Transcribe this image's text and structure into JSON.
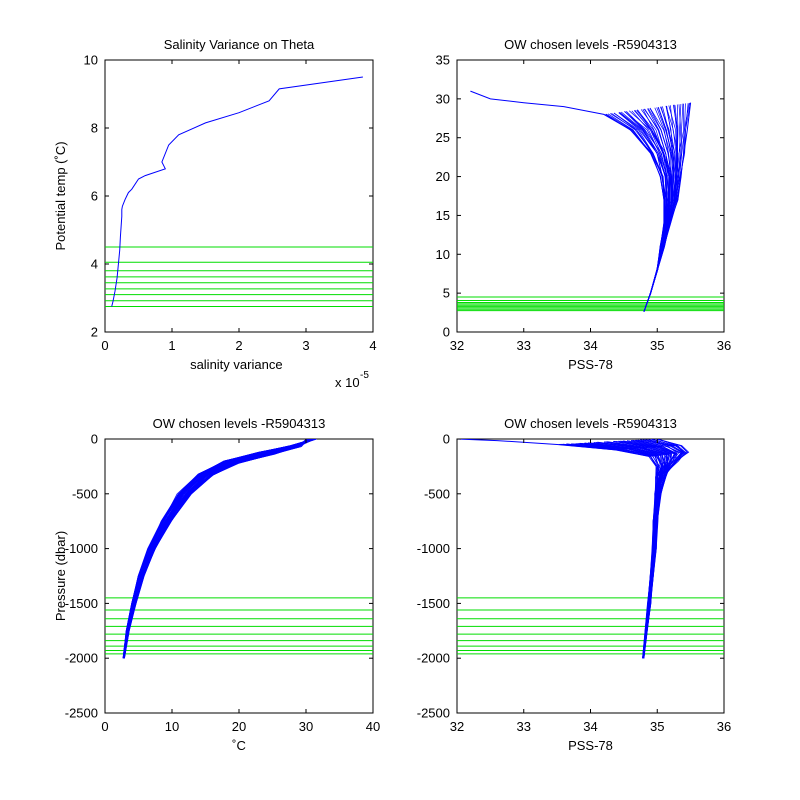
{
  "colors": {
    "profile": "#0000ff",
    "levels": "#00dd00",
    "axes": "#000000"
  },
  "chart_data": [
    {
      "id": "p1",
      "type": "line",
      "title": "Salinity Variance on Theta",
      "xlabel": "salinity variance",
      "ylabel": "Potential temp (˚C)",
      "x_exponent_label": "x 10",
      "x_exponent_power": "-5",
      "xlim": [
        0,
        4e-05
      ],
      "ylim": [
        2,
        10
      ],
      "xticks": [
        0,
        1e-05,
        2e-05,
        3e-05,
        4e-05
      ],
      "xtick_labels": [
        "0",
        "1",
        "2",
        "3",
        "4"
      ],
      "yticks": [
        2,
        4,
        6,
        8,
        10
      ],
      "ytick_labels": [
        "2",
        "4",
        "6",
        "8",
        "10"
      ],
      "grid": false,
      "series": [
        {
          "x": [
            1e-06,
            1.2e-06,
            1.5e-06,
            1.8e-06,
            2e-06,
            2.2e-06,
            2.3e-06,
            2.4e-06,
            2.5e-06,
            2.5e-06,
            2.6e-06,
            3e-06,
            3.5e-06,
            4e-06,
            5e-06,
            6e-06,
            9e-06,
            8.5e-06,
            9.5e-06,
            1.1e-05,
            1.5e-05,
            2e-05,
            2.45e-05,
            2.6e-05,
            3.85e-05
          ],
          "y": [
            2.75,
            2.9,
            3.2,
            3.6,
            4.0,
            4.4,
            4.8,
            5.1,
            5.4,
            5.6,
            5.7,
            5.9,
            6.1,
            6.2,
            6.5,
            6.6,
            6.8,
            7.0,
            7.5,
            7.8,
            8.15,
            8.45,
            8.8,
            9.15,
            9.5
          ]
        }
      ],
      "levels": [
        2.75,
        2.92,
        3.1,
        3.27,
        3.45,
        3.62,
        3.8,
        4.05,
        4.5
      ]
    },
    {
      "id": "p2",
      "type": "line",
      "title": "OW chosen levels -R5904313",
      "xlabel": "PSS-78",
      "ylabel": "",
      "xlim": [
        32,
        36
      ],
      "ylim": [
        0,
        35
      ],
      "xticks": [
        32,
        33,
        34,
        35,
        36
      ],
      "xtick_labels": [
        "32",
        "33",
        "34",
        "35",
        "36"
      ],
      "yticks": [
        0,
        5,
        10,
        15,
        20,
        25,
        30,
        35
      ],
      "ytick_labels": [
        "0",
        "5",
        "10",
        "15",
        "20",
        "25",
        "30",
        "35"
      ],
      "grid": false,
      "series": [
        {
          "name": "",
          "x": [
            34.8,
            34.9,
            35.0,
            35.05,
            35.1,
            35.1,
            35.05,
            34.9,
            34.6,
            34.2,
            33.6,
            33.0,
            32.5,
            32.2
          ],
          "y": [
            2.6,
            5.0,
            8.0,
            11.0,
            14.0,
            17.0,
            20.0,
            23.0,
            26.0,
            28.0,
            29.0,
            29.5,
            30.0,
            31.0
          ]
        },
        {
          "name": "",
          "x": [
            34.8,
            34.9,
            35.0,
            35.1,
            35.2,
            35.3,
            35.35,
            35.4,
            35.45,
            35.5
          ],
          "y": [
            2.6,
            5.0,
            8.0,
            11.0,
            14.0,
            17.0,
            20.0,
            23.0,
            26.0,
            29.5
          ]
        }
      ],
      "levels": [
        2.75,
        2.92,
        3.1,
        3.27,
        3.45,
        3.62,
        3.8,
        4.05,
        4.5
      ]
    },
    {
      "id": "p3",
      "type": "line",
      "title": "OW chosen levels -R5904313",
      "xlabel": "˚C",
      "ylabel": "Pressure (dbar)",
      "xlim": [
        0,
        40
      ],
      "ylim": [
        -2500,
        0
      ],
      "xticks": [
        0,
        10,
        20,
        30,
        40
      ],
      "xtick_labels": [
        "0",
        "10",
        "20",
        "30",
        "40"
      ],
      "yticks": [
        -2500,
        -2000,
        -1500,
        -1000,
        -500,
        0
      ],
      "ytick_labels": [
        "-2500",
        "-2000",
        "-1500",
        "-1000",
        "-500",
        "0"
      ],
      "grid": false,
      "series": [
        {
          "name": "",
          "x": [
            2.7,
            3.2,
            4.0,
            5.0,
            6.5,
            8.5,
            11.0,
            14.0,
            18.0,
            23.0,
            28.0,
            31.5
          ],
          "y": [
            -2000,
            -1750,
            -1500,
            -1250,
            -1000,
            -750,
            -500,
            -320,
            -200,
            -120,
            -60,
            0
          ]
        },
        {
          "name": "",
          "x": [
            2.9,
            3.6,
            4.6,
            5.8,
            7.4,
            9.8,
            12.8,
            16.0,
            20.0,
            25.0,
            29.0,
            30.5
          ],
          "y": [
            -2000,
            -1750,
            -1500,
            -1250,
            -1000,
            -750,
            -500,
            -330,
            -220,
            -140,
            -70,
            0
          ]
        }
      ],
      "levels": [
        -1450,
        -1560,
        -1640,
        -1710,
        -1780,
        -1840,
        -1890,
        -1930,
        -1960
      ]
    },
    {
      "id": "p4",
      "type": "line",
      "title": "OW chosen levels -R5904313",
      "xlabel": "PSS-78",
      "ylabel": "",
      "xlim": [
        32,
        36
      ],
      "ylim": [
        -2500,
        0
      ],
      "xticks": [
        32,
        33,
        34,
        35,
        36
      ],
      "xtick_labels": [
        "32",
        "33",
        "34",
        "35",
        "36"
      ],
      "yticks": [
        -2500,
        -2000,
        -1500,
        -1000,
        -500,
        0
      ],
      "ytick_labels": [
        "-2500",
        "-2000",
        "-1500",
        "-1000",
        "-500",
        "0"
      ],
      "grid": false,
      "series": [
        {
          "name": "",
          "x": [
            34.78,
            34.82,
            34.86,
            34.9,
            34.93,
            34.95,
            34.97,
            34.98,
            35.0,
            34.9,
            34.4,
            33.5,
            32.6,
            32.0
          ],
          "y": [
            -2000,
            -1750,
            -1500,
            -1250,
            -1000,
            -750,
            -500,
            -350,
            -250,
            -160,
            -100,
            -50,
            -15,
            0
          ]
        },
        {
          "name": "",
          "x": [
            34.8,
            34.85,
            34.9,
            34.94,
            34.98,
            35.0,
            35.05,
            35.15,
            35.3,
            35.45,
            35.35,
            35.0
          ],
          "y": [
            -2000,
            -1750,
            -1500,
            -1250,
            -1000,
            -750,
            -500,
            -300,
            -200,
            -120,
            -60,
            0
          ]
        }
      ],
      "levels": [
        -1450,
        -1560,
        -1640,
        -1710,
        -1780,
        -1840,
        -1890,
        -1930,
        -1960
      ]
    }
  ]
}
